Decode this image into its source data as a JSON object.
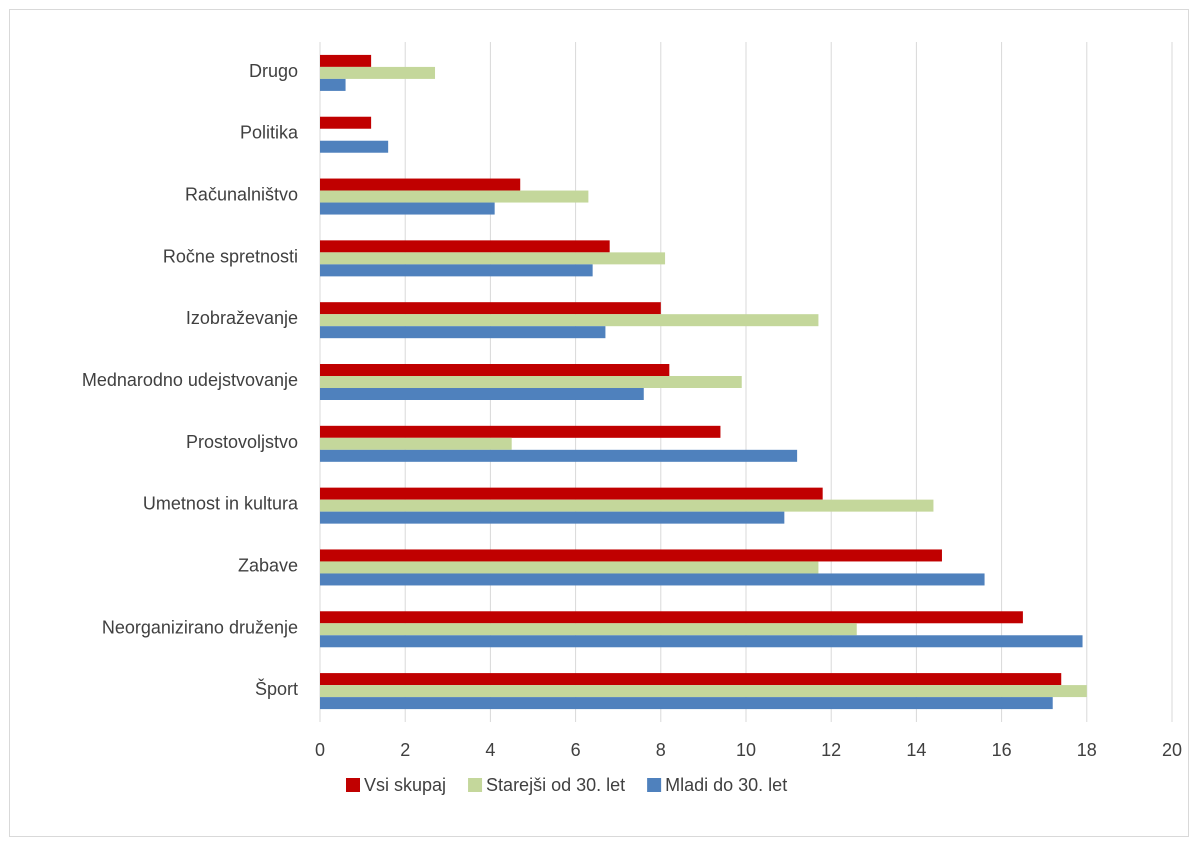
{
  "chart_data": {
    "type": "bar",
    "orientation": "horizontal",
    "categories": [
      "Drugo",
      "Politika",
      "Računalništvo",
      "Ročne spretnosti",
      "Izobraževanje",
      "Mednarodno udejstvovanje",
      "Prostovoljstvo",
      "Umetnost in kultura",
      "Zabave",
      "Neorganizirano druženje",
      "Šport"
    ],
    "series": [
      {
        "name": "Vsi skupaj",
        "color": "#c00000",
        "values": [
          1.2,
          1.2,
          4.7,
          6.8,
          8.0,
          8.2,
          9.4,
          11.8,
          14.6,
          16.5,
          17.4
        ]
      },
      {
        "name": "Starejši od 30. let",
        "color": "#c4d79b",
        "values": [
          2.7,
          0,
          6.3,
          8.1,
          11.7,
          9.9,
          4.5,
          14.4,
          11.7,
          12.6,
          18.0
        ]
      },
      {
        "name": "Mladi do 30. let",
        "color": "#4f81bd",
        "values": [
          0.6,
          1.6,
          4.1,
          6.4,
          6.7,
          7.6,
          11.2,
          10.9,
          15.6,
          17.9,
          17.2
        ]
      }
    ],
    "xlim": [
      0,
      20
    ],
    "xticks": [
      "0",
      "2",
      "4",
      "6",
      "8",
      "10",
      "12",
      "14",
      "16",
      "18",
      "20"
    ],
    "grid": true,
    "legend_position": "bottom",
    "title": "",
    "xlabel": "",
    "ylabel": ""
  }
}
